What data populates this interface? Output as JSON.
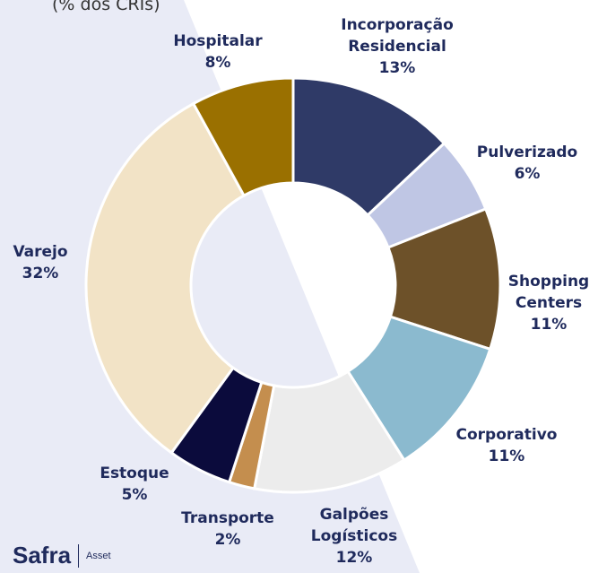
{
  "chart_data": {
    "type": "donut",
    "title": "(% dos CRIs)",
    "categories": [
      "Incorporação Residencial",
      "Pulverizado",
      "Shopping Centers",
      "Corporativo",
      "Galpões Logísticos",
      "Transporte",
      "Estoque",
      "Varejo",
      "Hospitalar"
    ],
    "values": [
      13,
      6,
      11,
      11,
      12,
      2,
      5,
      32,
      8
    ],
    "value_labels": [
      "13%",
      "6%",
      "11%",
      "11%",
      "12%",
      "2%",
      "5%",
      "32%",
      "8%"
    ],
    "colors": [
      "#2f3a67",
      "#bfc6e4",
      "#6d5129",
      "#8bbacf",
      "#ececec",
      "#c48e4e",
      "#0b0b3c",
      "#f2e3c6",
      "#9a7000"
    ]
  },
  "footer": {
    "brand": "Safra",
    "subbrand": "Asset"
  }
}
